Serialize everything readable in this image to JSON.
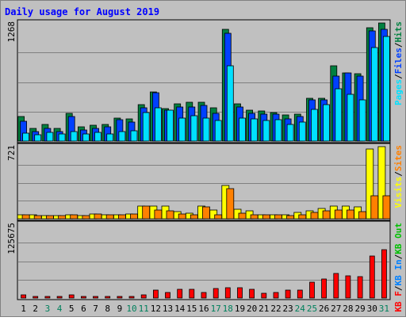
{
  "chart_data": {
    "type": "bar",
    "title": "Daily usage for August 2019",
    "categories": [
      "1",
      "2",
      "3",
      "4",
      "5",
      "6",
      "7",
      "8",
      "9",
      "10",
      "11",
      "12",
      "13",
      "14",
      "15",
      "16",
      "17",
      "18",
      "19",
      "20",
      "21",
      "22",
      "23",
      "24",
      "25",
      "26",
      "27",
      "28",
      "29",
      "30",
      "31"
    ],
    "weekend_days": [
      3,
      4,
      10,
      11,
      17,
      18,
      24,
      25,
      31
    ],
    "colors": {
      "background": "#c0c0c0",
      "border": "#ffffff",
      "frame": "#808080",
      "title": "#0000ff",
      "hits": "#008040",
      "files": "#0040ff",
      "pages": "#00e0ff",
      "visits": "#ffff00",
      "sites": "#ff8000",
      "kbf": "#ff0000",
      "kbin": "#0080ff",
      "kbout": "#00c000",
      "weekend": "#00805c",
      "weekday": "#000000"
    },
    "panels": [
      {
        "name": "hits-files-pages",
        "max_label": "1268",
        "ymax": 1268,
        "legend": [
          {
            "label": "Pages",
            "color": "#00e0ff"
          },
          {
            "label": "/",
            "color": "#000000"
          },
          {
            "label": "Files",
            "color": "#0040ff"
          },
          {
            "label": "/",
            "color": "#000000"
          },
          {
            "label": "Hits",
            "color": "#008040"
          }
        ],
        "series": [
          {
            "key": "hits",
            "color": "#008040",
            "values": [
              260,
              140,
              180,
              140,
              300,
              150,
              170,
              180,
              250,
              240,
              390,
              530,
              350,
              400,
              420,
              420,
              360,
              1200,
              400,
              330,
              320,
              310,
              280,
              290,
              460,
              460,
              810,
              730,
              720,
              1220,
              1268
            ]
          },
          {
            "key": "files",
            "color": "#0040ff",
            "values": [
              215,
              100,
              140,
              100,
              260,
              120,
              140,
              150,
              230,
              200,
              360,
              520,
              330,
              370,
              370,
              380,
              300,
              1160,
              370,
              300,
              290,
              290,
              240,
              260,
              440,
              440,
              700,
              730,
              700,
              1180,
              1200
            ]
          },
          {
            "key": "pages",
            "color": "#00e0ff",
            "values": [
              85,
              70,
              90,
              80,
              100,
              80,
              90,
              80,
              100,
              110,
              310,
              360,
              335,
              250,
              270,
              250,
              225,
              810,
              250,
              240,
              220,
              230,
              180,
              200,
              340,
              390,
              560,
              500,
              440,
              1000,
              1120
            ]
          }
        ]
      },
      {
        "name": "visits-sites",
        "max_label": "721",
        "ymax": 721,
        "legend": [
          {
            "label": "Visits",
            "color": "#ffff00"
          },
          {
            "label": "/",
            "color": "#000000"
          },
          {
            "label": "Sites",
            "color": "#ff8000"
          }
        ],
        "series": [
          {
            "key": "visits",
            "color": "#ffff00",
            "values": [
              42,
              40,
              28,
              33,
              38,
              35,
              44,
              38,
              40,
              44,
              125,
              125,
              125,
              70,
              55,
              125,
              85,
              335,
              95,
              80,
              40,
              42,
              42,
              65,
              82,
              100,
              125,
              125,
              120,
              700,
              721
            ]
          },
          {
            "key": "sites",
            "color": "#ff8000",
            "values": [
              40,
              34,
              34,
              33,
              38,
              35,
              44,
              38,
              40,
              44,
              125,
              90,
              80,
              50,
              40,
              120,
              40,
              300,
              55,
              40,
              40,
              38,
              35,
              42,
              60,
              80,
              90,
              86,
              70,
              230,
              230
            ]
          }
        ]
      },
      {
        "name": "kb",
        "max_label": "125675",
        "ymax": 125675,
        "legend": [
          {
            "label": "KB F",
            "color": "#ff0000"
          },
          {
            "label": "/",
            "color": "#000000"
          },
          {
            "label": "KB In",
            "color": "#0080ff"
          },
          {
            "label": "/",
            "color": "#000000"
          },
          {
            "label": "KB Out",
            "color": "#00c000"
          }
        ],
        "series": [
          {
            "key": "kbf",
            "color": "#ff0000",
            "values": [
              5000,
              3000,
              3000,
              3000,
              5000,
              3000,
              3000,
              3000,
              3000,
              3000,
              5000,
              14000,
              9000,
              15000,
              15000,
              9000,
              16000,
              18000,
              18000,
              15000,
              8000,
              9000,
              13000,
              13000,
              27000,
              32000,
              42000,
              38000,
              36000,
              72000,
              82000
            ]
          }
        ]
      }
    ]
  }
}
